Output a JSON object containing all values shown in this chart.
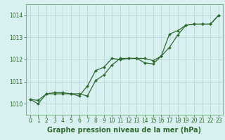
{
  "line1_x": [
    0,
    1,
    2,
    3,
    4,
    5,
    6,
    7,
    8,
    9,
    10,
    11,
    12,
    13,
    14,
    15,
    16,
    17,
    18,
    19,
    20,
    21,
    22,
    23
  ],
  "line1_y": [
    1010.2,
    1010.15,
    1010.45,
    1010.5,
    1010.5,
    1010.45,
    1010.45,
    1010.35,
    1011.05,
    1011.3,
    1011.75,
    1012.05,
    1012.05,
    1012.05,
    1012.05,
    1011.95,
    1012.15,
    1012.55,
    1013.1,
    1013.55,
    1013.6,
    1013.6,
    1013.6,
    1014.0
  ],
  "line2_x": [
    0,
    1,
    2,
    3,
    4,
    5,
    6,
    7,
    8,
    9,
    10,
    11,
    12,
    13,
    14,
    15,
    16,
    17,
    18,
    19,
    20,
    21,
    22,
    23
  ],
  "line2_y": [
    1010.2,
    1010.0,
    1010.45,
    1010.45,
    1010.45,
    1010.45,
    1010.35,
    1010.8,
    1011.5,
    1011.65,
    1012.05,
    1012.0,
    1012.05,
    1012.05,
    1011.85,
    1011.8,
    1012.15,
    1013.15,
    1013.3,
    1013.55,
    1013.6,
    1013.6,
    1013.6,
    1014.0
  ],
  "xlim": [
    -0.5,
    23.5
  ],
  "ylim": [
    1009.5,
    1014.5
  ],
  "yticks": [
    1010,
    1011,
    1012,
    1013,
    1014
  ],
  "xticks": [
    0,
    1,
    2,
    3,
    4,
    5,
    6,
    7,
    8,
    9,
    10,
    11,
    12,
    13,
    14,
    15,
    16,
    17,
    18,
    19,
    20,
    21,
    22,
    23
  ],
  "line_color": "#2d6a2d",
  "bg_color": "#d8f0f0",
  "grid_color": "#b8d8d8",
  "xlabel": "Graphe pression niveau de la mer (hPa)",
  "tick_color": "#2d6a2d",
  "tick_fontsize": 5.5,
  "label_fontsize": 7.0,
  "spine_color": "#6aaa6a"
}
